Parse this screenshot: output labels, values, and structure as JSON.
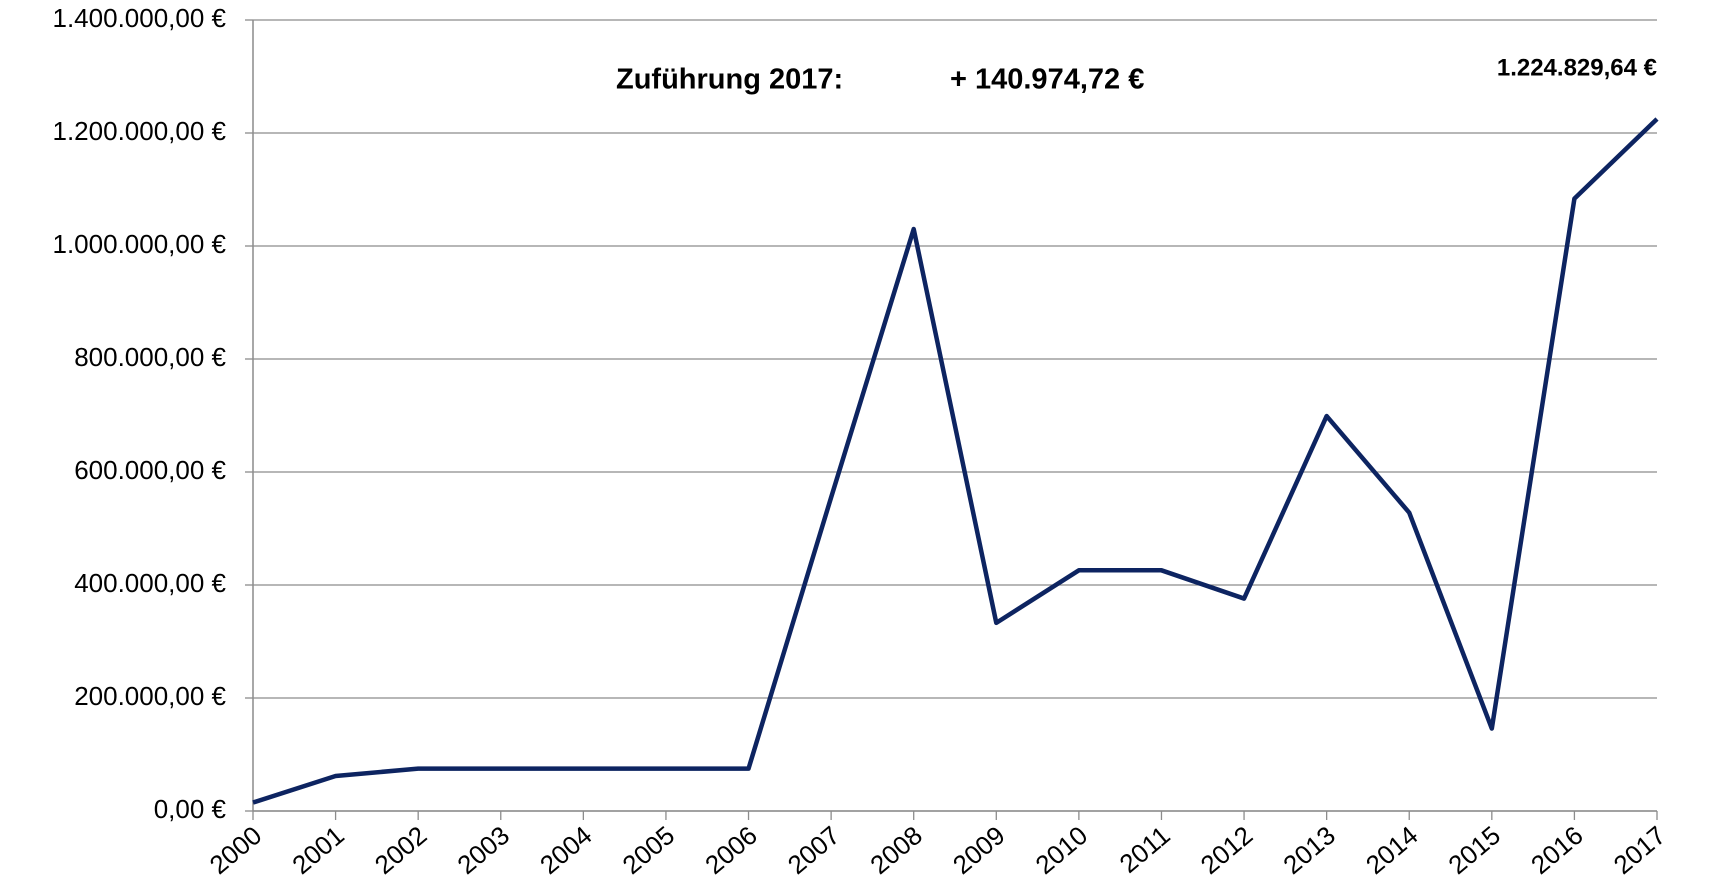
{
  "chart_data": {
    "type": "line",
    "annotations": [
      "Zuführung 2017:",
      "+ 140.974,72 €"
    ],
    "categories": [
      "2000",
      "2001",
      "2002",
      "2003",
      "2004",
      "2005",
      "2006",
      "2007",
      "2008",
      "2009",
      "2010",
      "2011",
      "2012",
      "2013",
      "2014",
      "2015",
      "2016",
      "2017"
    ],
    "values": [
      15000,
      62000,
      75000,
      75000,
      75000,
      75000,
      75000,
      555000,
      1030000,
      333000,
      426000,
      426000,
      376000,
      699000,
      528000,
      146000,
      1083854.92,
      1224829.64
    ],
    "value_labels": [
      null,
      null,
      null,
      null,
      null,
      null,
      null,
      null,
      null,
      null,
      null,
      null,
      null,
      null,
      null,
      null,
      null,
      "1.224.829,64 €"
    ],
    "color": "#0d2461",
    "ylim": [
      0,
      1400000
    ],
    "yticks": [
      {
        "value": 0,
        "label": "0,00 €"
      },
      {
        "value": 200000,
        "label": "200.000,00 €"
      },
      {
        "value": 400000,
        "label": "400.000,00 €"
      },
      {
        "value": 600000,
        "label": "600.000,00 €"
      },
      {
        "value": 800000,
        "label": "800.000,00 €"
      },
      {
        "value": 1000000,
        "label": "1.000.000,00 €"
      },
      {
        "value": 1200000,
        "label": "1.200.000,00 €"
      },
      {
        "value": 1400000,
        "label": "1.400.000,00 €"
      }
    ],
    "grid": true
  }
}
